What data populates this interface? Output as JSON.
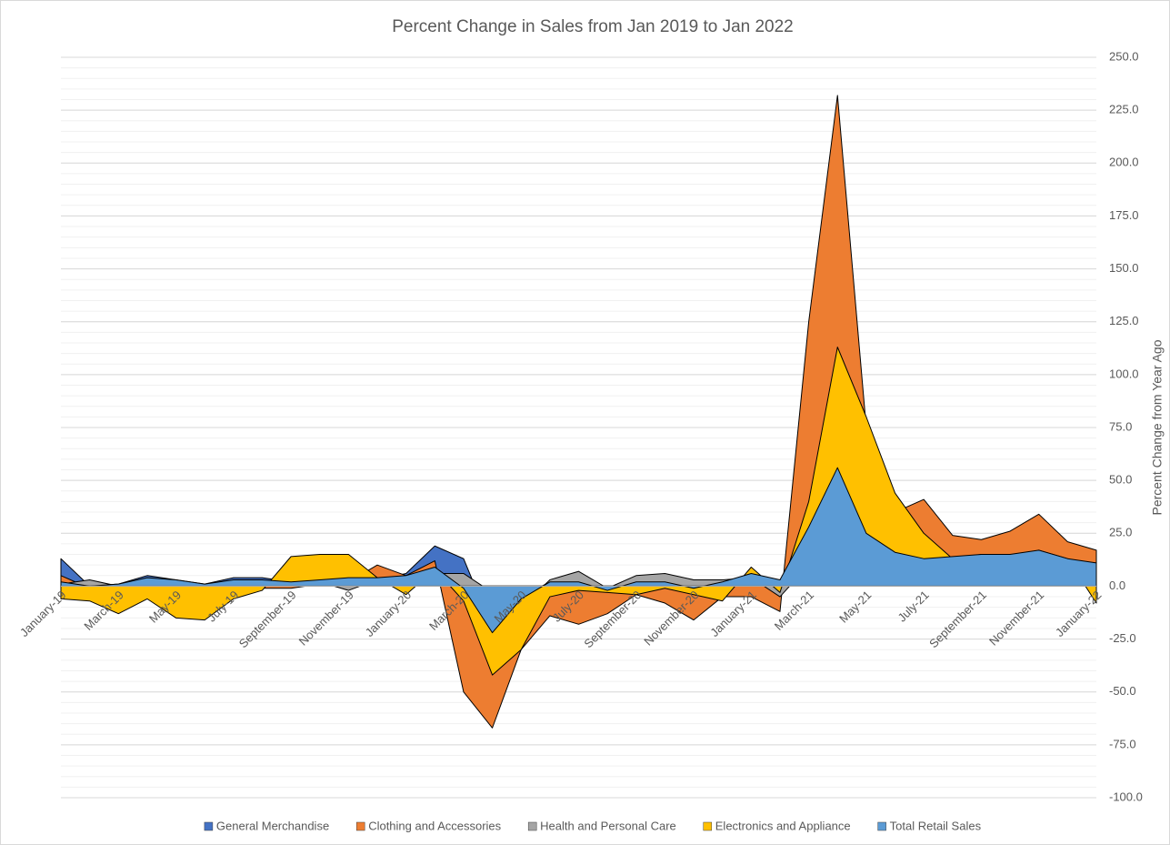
{
  "chart_data": {
    "type": "area",
    "title": "Percent Change in Sales from Jan 2019 to Jan 2022",
    "y_axis_label": "Percent Change from  Year Ago",
    "categories": [
      "January-19",
      null,
      "March-19",
      null,
      "May-19",
      null,
      "July-19",
      null,
      "September-19",
      null,
      "November-19",
      null,
      "January-20",
      null,
      "March-20",
      null,
      "May-20",
      null,
      "July-20",
      null,
      "September-20",
      null,
      "November-20",
      null,
      "January-21",
      null,
      "March-21",
      null,
      "May-21",
      null,
      "July-21",
      null,
      "September-21",
      null,
      "November-21",
      null,
      "January-22"
    ],
    "series": [
      {
        "name": "General Merchandise",
        "color": "#4472c4",
        "values": [
          13,
          0,
          1,
          5,
          3,
          1,
          4,
          4,
          2,
          3,
          3,
          3,
          6,
          19,
          13,
          -20,
          -5,
          2,
          1,
          -3,
          2,
          2,
          -1,
          2,
          5,
          2,
          25,
          50,
          20,
          12,
          10,
          10,
          12,
          12,
          13,
          10,
          8
        ]
      },
      {
        "name": "Clothing and Accessories",
        "color": "#ed7d31",
        "values": [
          5,
          -1,
          0,
          3,
          1,
          -1,
          0,
          -1,
          -1,
          1,
          2,
          10,
          5,
          12,
          -50,
          -67,
          -30,
          -14,
          -18,
          -13,
          -4,
          -8,
          -16,
          -5,
          -5,
          -12,
          125,
          232,
          75,
          35,
          41,
          24,
          22,
          26,
          34,
          21,
          17
        ]
      },
      {
        "name": "Health and Personal Care",
        "color": "#a5a5a5",
        "values": [
          1,
          3,
          0,
          1,
          2,
          1,
          2,
          2,
          1,
          2,
          -2,
          3,
          4,
          6,
          6,
          -3,
          -10,
          3,
          7,
          -1,
          5,
          6,
          3,
          3,
          4,
          -5,
          10,
          30,
          20,
          12,
          12,
          10,
          12,
          12,
          12,
          10,
          8
        ]
      },
      {
        "name": "Electronics and Appliance",
        "color": "#ffc000",
        "values": [
          -6,
          -7,
          -13,
          -6,
          -15,
          -16,
          -6,
          -2,
          14,
          15,
          15,
          4,
          -4,
          8,
          -7,
          -42,
          -30,
          -5,
          -2,
          -3,
          -4,
          -1,
          -4,
          -7,
          9,
          -3,
          40,
          113,
          80,
          44,
          25,
          13,
          15,
          13,
          17,
          13,
          -8
        ]
      },
      {
        "name": "Total Retail Sales",
        "color": "#5b9bd5",
        "values": [
          2,
          0,
          1,
          4,
          3,
          1,
          3,
          3,
          2,
          3,
          4,
          4,
          5,
          9,
          -1,
          -22,
          -6,
          2,
          2,
          -2,
          2,
          2,
          -1,
          2,
          6,
          3,
          28,
          56,
          25,
          16,
          13,
          14,
          15,
          15,
          17,
          13,
          11
        ]
      }
    ],
    "ylim": [
      -100,
      250
    ],
    "yticks": [
      {
        "value": -100,
        "label": "-100.0"
      },
      {
        "value": -75,
        "label": "-75.0"
      },
      {
        "value": -50,
        "label": "-50.0"
      },
      {
        "value": -25,
        "label": "-25.0"
      },
      {
        "value": 0,
        "label": "0.0"
      },
      {
        "value": 25,
        "label": "25.0"
      },
      {
        "value": 50,
        "label": "50.0"
      },
      {
        "value": 75,
        "label": "75.0"
      },
      {
        "value": 100,
        "label": "100.0"
      },
      {
        "value": 125,
        "label": "125.0"
      },
      {
        "value": 150,
        "label": "150.0"
      },
      {
        "value": 175,
        "label": "175.0"
      },
      {
        "value": 200,
        "label": "200.0"
      },
      {
        "value": 225,
        "label": "225.0"
      },
      {
        "value": 250,
        "label": "250.0"
      }
    ],
    "grid": true,
    "minor_grid": 5,
    "legend": "bottom"
  }
}
